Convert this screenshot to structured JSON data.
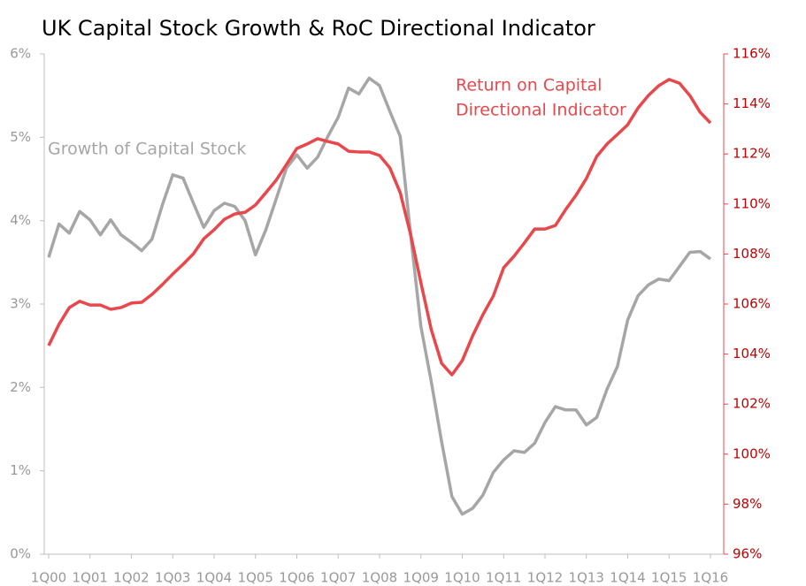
{
  "chart_data": {
    "type": "line",
    "title": "UK Capital Stock Growth & RoC Directional Indicator",
    "annotations": [
      "Growth of Capital Stock",
      "Return on Capital",
      "Directional Indicator"
    ],
    "categories": [
      "1Q00",
      null,
      null,
      null,
      "1Q01",
      null,
      null,
      null,
      "1Q02",
      null,
      null,
      null,
      "1Q03",
      null,
      null,
      null,
      "1Q04",
      null,
      null,
      null,
      "1Q05",
      null,
      null,
      null,
      "1Q06",
      null,
      null,
      null,
      "1Q07",
      null,
      null,
      null,
      "1Q08",
      null,
      null,
      null,
      "1Q09",
      null,
      null,
      null,
      "1Q10",
      null,
      null,
      null,
      "1Q11",
      null,
      null,
      null,
      "1Q12",
      null,
      null,
      null,
      "1Q13",
      null,
      null,
      null,
      "1Q14",
      null,
      null,
      null,
      "1Q15",
      null,
      null,
      null,
      "1Q16"
    ],
    "series": [
      {
        "name": "Growth of Capital Stock",
        "color": "#a6a6a6",
        "axis": "y",
        "values": [
          3.56,
          3.96,
          3.85,
          4.11,
          4.01,
          3.83,
          4.01,
          3.83,
          3.74,
          3.64,
          3.78,
          4.19,
          4.55,
          4.51,
          4.21,
          3.92,
          4.12,
          4.21,
          4.17,
          4.0,
          3.59,
          3.89,
          4.26,
          4.63,
          4.79,
          4.63,
          4.76,
          5.01,
          5.24,
          5.59,
          5.52,
          5.71,
          5.62,
          5.31,
          5.01,
          3.84,
          2.73,
          2.07,
          1.35,
          0.69,
          0.48,
          0.55,
          0.71,
          0.98,
          1.13,
          1.24,
          1.22,
          1.33,
          1.58,
          1.77,
          1.73,
          1.73,
          1.55,
          1.64,
          1.98,
          2.25,
          2.81,
          3.1,
          3.23,
          3.3,
          3.28,
          3.45,
          3.62,
          3.63,
          3.54
        ]
      },
      {
        "name": "Return on Capital Directional Indicator",
        "color": "#e8474c",
        "axis": "y2",
        "values": [
          104.34,
          105.19,
          105.86,
          106.11,
          105.96,
          105.96,
          105.79,
          105.86,
          106.04,
          106.07,
          106.39,
          106.78,
          107.2,
          107.59,
          108.01,
          108.61,
          108.97,
          109.39,
          109.6,
          109.67,
          109.96,
          110.45,
          110.95,
          111.58,
          112.22,
          112.4,
          112.61,
          112.5,
          112.4,
          112.11,
          112.08,
          112.08,
          111.94,
          111.44,
          110.45,
          108.79,
          106.85,
          104.98,
          103.63,
          103.17,
          103.74,
          104.73,
          105.58,
          106.32,
          107.45,
          107.91,
          108.44,
          109.0,
          109.0,
          109.14,
          109.78,
          110.35,
          111.02,
          111.9,
          112.4,
          112.78,
          113.17,
          113.84,
          114.34,
          114.73,
          114.98,
          114.83,
          114.34,
          113.67,
          113.24
        ]
      }
    ],
    "ylim": [
      0,
      6
    ],
    "yticks": [
      {
        "value": 0,
        "label": "0%"
      },
      {
        "value": 1,
        "label": "1%"
      },
      {
        "value": 2,
        "label": "2%"
      },
      {
        "value": 3,
        "label": "3%"
      },
      {
        "value": 4,
        "label": "4%"
      },
      {
        "value": 5,
        "label": "5%"
      },
      {
        "value": 6,
        "label": "6%"
      }
    ],
    "y2lim": [
      96,
      116
    ],
    "y2ticks": [
      {
        "value": 96,
        "label": "96%"
      },
      {
        "value": 98,
        "label": "98%"
      },
      {
        "value": 100,
        "label": "100%"
      },
      {
        "value": 102,
        "label": "102%"
      },
      {
        "value": 104,
        "label": "104%"
      },
      {
        "value": 106,
        "label": "106%"
      },
      {
        "value": 108,
        "label": "108%"
      },
      {
        "value": 110,
        "label": "110%"
      },
      {
        "value": 112,
        "label": "112%"
      },
      {
        "value": 114,
        "label": "114%"
      },
      {
        "value": 116,
        "label": "116%"
      }
    ],
    "y2color": "#e8474c",
    "grid": false
  }
}
